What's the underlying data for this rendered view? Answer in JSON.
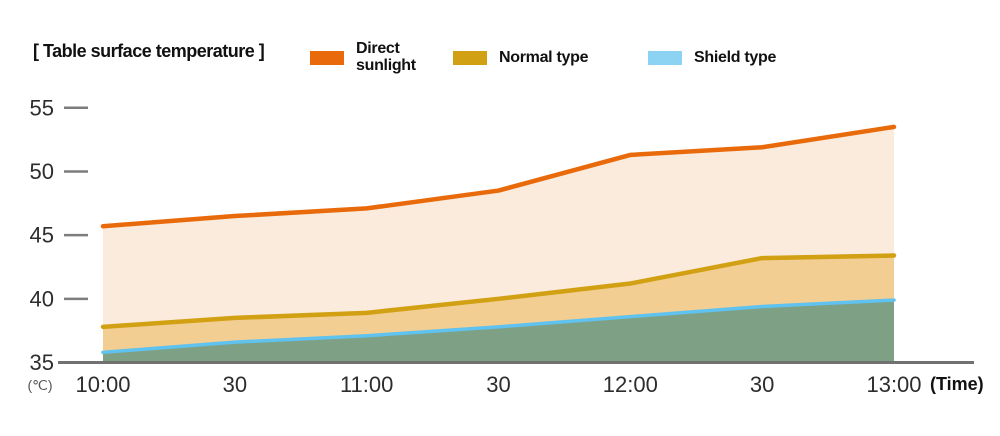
{
  "header": {
    "title": "[ Table surface temperature ]"
  },
  "chart_data": {
    "type": "area",
    "title": "Table surface temperature",
    "x": [
      "10:00",
      "10:30",
      "11:00",
      "11:30",
      "12:00",
      "12:30",
      "13:00"
    ],
    "x_tick_labels": [
      "10:00",
      "30",
      "11:00",
      "30",
      "12:00",
      "30",
      "13:00"
    ],
    "y_ticks": [
      55,
      50,
      45,
      40,
      35
    ],
    "ylim": [
      35,
      55
    ],
    "y_unit_label": "(℃)",
    "x_unit_label": "(Time)",
    "grid": false,
    "legend_position": "top",
    "series": [
      {
        "name": "Direct sunlight",
        "line_color": "#E96A0B",
        "fill_color": "#FBEBDC",
        "swatch_color": "#E96A0B",
        "values": [
          45.7,
          46.5,
          47.1,
          48.5,
          51.3,
          51.9,
          53.5
        ]
      },
      {
        "name": "Normal type",
        "line_color": "#D2A013",
        "fill_color": "#F3CE92",
        "swatch_color": "#D2A013",
        "values": [
          37.8,
          38.5,
          38.9,
          40.0,
          41.2,
          43.2,
          43.4
        ]
      },
      {
        "name": "Shield type",
        "line_color": "#60C2EF",
        "fill_color": "#7EA084",
        "swatch_color": "#8CD2F3",
        "values": [
          35.8,
          36.6,
          37.1,
          37.8,
          38.6,
          39.4,
          39.9
        ]
      }
    ]
  }
}
